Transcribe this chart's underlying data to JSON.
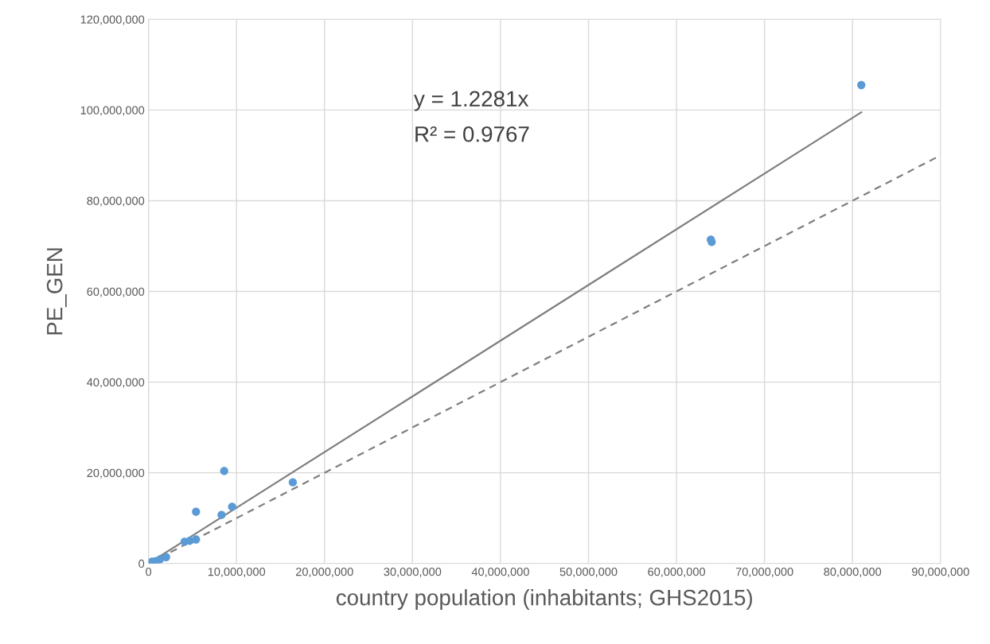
{
  "chart_data": {
    "type": "scatter",
    "xlabel": "country population (inhabitants; GHS2015)",
    "ylabel": "PE_GEN",
    "annotations": [
      "y = 1.2281x",
      "R² = 0.9767"
    ],
    "series": [
      {
        "color": "#5b9bd5",
        "marker": "circle",
        "x": [
          400000,
          800000,
          1300000,
          2000000,
          4100000,
          4700000,
          5400000,
          5400000,
          8300000,
          8600000,
          9500000,
          16400000,
          63900000,
          64000000,
          81000000
        ],
        "values": [
          400000,
          500000,
          900000,
          1400000,
          4800000,
          5000000,
          5300000,
          11400000,
          10700000,
          20400000,
          12500000,
          17900000,
          71400000,
          70900000,
          105500000
        ]
      },
      {
        "type": "line",
        "color": "#7f7f7f",
        "line_style": "solid",
        "x": [
          0,
          81000000
        ],
        "values": [
          0,
          99500000
        ]
      },
      {
        "type": "line",
        "color": "#7f7f7f",
        "line_style": "dashed",
        "x": [
          0,
          90000000
        ],
        "values": [
          0,
          90000000
        ]
      }
    ],
    "xlim": [
      0,
      90000000
    ],
    "ylim": [
      0,
      120000000
    ],
    "xticks": [
      0,
      {
        "value": 10000000,
        "label": "10,000,000"
      },
      {
        "value": 20000000,
        "label": "20,000,000"
      },
      {
        "value": 30000000,
        "label": "30,000,000"
      },
      {
        "value": 40000000,
        "label": "40,000,000"
      },
      {
        "value": 50000000,
        "label": "50,000,000"
      },
      {
        "value": 60000000,
        "label": "60,000,000"
      },
      {
        "value": 70000000,
        "label": "70,000,000"
      },
      {
        "value": 80000000,
        "label": "80,000,000"
      },
      {
        "value": 90000000,
        "label": "90,000,000"
      }
    ],
    "yticks": [
      0,
      {
        "value": 20000000,
        "label": "20,000,000"
      },
      {
        "value": 40000000,
        "label": "40,000,000"
      },
      {
        "value": 60000000,
        "label": "60,000,000"
      },
      {
        "value": 80000000,
        "label": "80,000,000"
      },
      {
        "value": 100000000,
        "label": "100,000,000"
      },
      {
        "value": 120000000,
        "label": "120,000,000"
      }
    ],
    "grid": true
  }
}
